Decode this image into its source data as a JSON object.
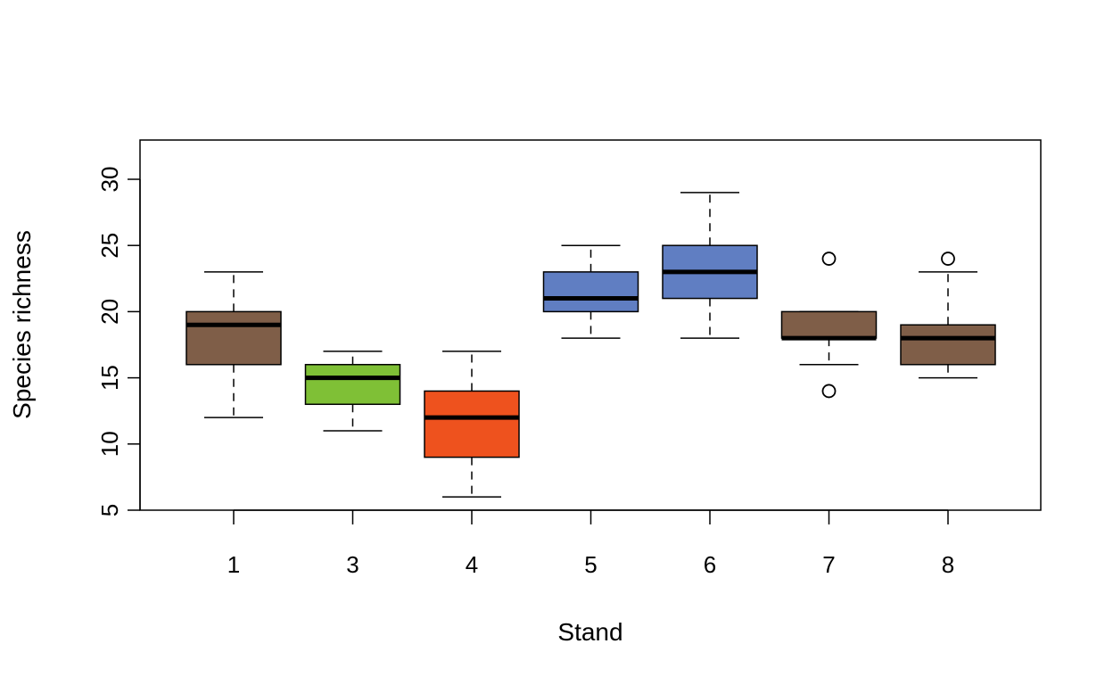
{
  "chart_data": {
    "type": "boxplot",
    "title": "",
    "xlabel": "Stand",
    "ylabel": "Species richness",
    "ylim": [
      5,
      33
    ],
    "yticks": [
      5,
      10,
      15,
      20,
      25,
      30
    ],
    "grid": false,
    "categories": [
      "1",
      "3",
      "4",
      "5",
      "6",
      "7",
      "8"
    ],
    "boxes": [
      {
        "category": "1",
        "whisker_low": 12,
        "q1": 16,
        "median": 19,
        "q3": 20,
        "whisker_high": 23,
        "outliers": [],
        "color": "#7F5E48"
      },
      {
        "category": "3",
        "whisker_low": 11,
        "q1": 13,
        "median": 15,
        "q3": 16,
        "whisker_high": 17,
        "outliers": [],
        "color": "#7FC036"
      },
      {
        "category": "4",
        "whisker_low": 6,
        "q1": 9,
        "median": 12,
        "q3": 14,
        "whisker_high": 17,
        "outliers": [],
        "color": "#EE521E"
      },
      {
        "category": "5",
        "whisker_low": 18,
        "q1": 20,
        "median": 21,
        "q3": 23,
        "whisker_high": 25,
        "outliers": [],
        "color": "#607EC2"
      },
      {
        "category": "6",
        "whisker_low": 18,
        "q1": 21,
        "median": 23,
        "q3": 25,
        "whisker_high": 29,
        "outliers": [],
        "color": "#607EC2"
      },
      {
        "category": "7",
        "whisker_low": 16,
        "q1": 18,
        "median": 18,
        "q3": 20,
        "whisker_high": 20,
        "outliers": [
          24,
          14
        ],
        "color": "#7F5E48"
      },
      {
        "category": "8",
        "whisker_low": 15,
        "q1": 16,
        "median": 18,
        "q3": 19,
        "whisker_high": 23,
        "outliers": [
          24
        ],
        "color": "#7F5E48"
      }
    ]
  }
}
